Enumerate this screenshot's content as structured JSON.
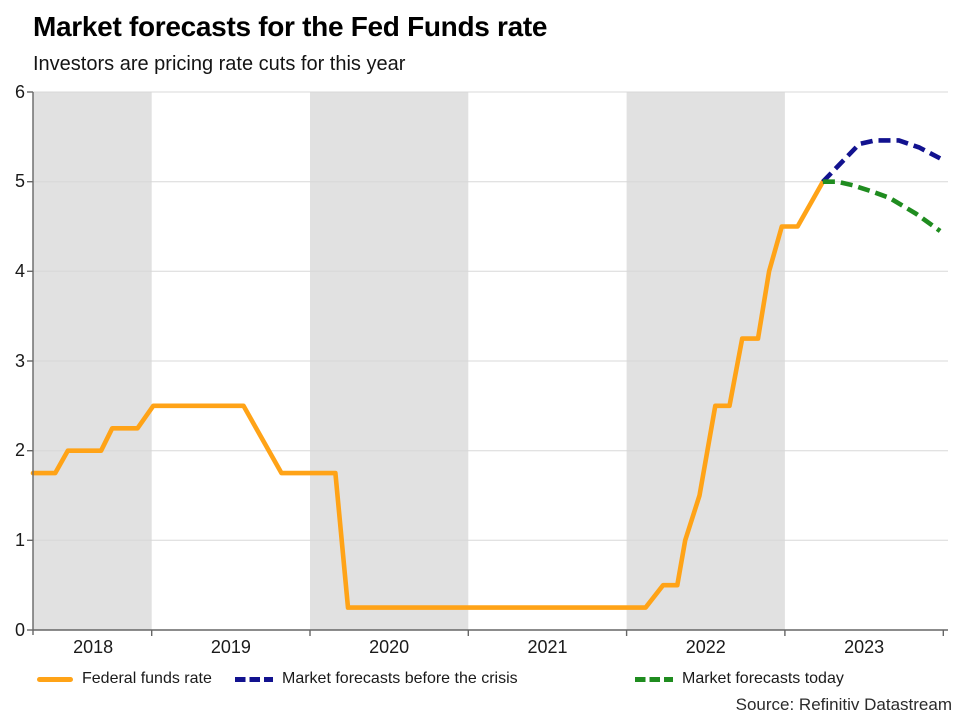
{
  "chart_data": {
    "type": "line",
    "title": "Market forecasts for the Fed Funds rate",
    "subtitle": "Investors are pricing rate cuts for this year",
    "source": "Source: Refinitiv Datastream",
    "xlabel": "",
    "ylabel": "",
    "xlim": [
      2018.25,
      2024.03
    ],
    "ylim": [
      0,
      6
    ],
    "y_ticks": [
      0,
      1,
      2,
      3,
      4,
      5,
      6
    ],
    "x_ticks": [
      2019,
      2020,
      2021,
      2022,
      2023,
      2024
    ],
    "x_tick_labels": [
      {
        "label": "2018",
        "x": 2018.63
      },
      {
        "label": "2019",
        "x": 2019.5
      },
      {
        "label": "2020",
        "x": 2020.5
      },
      {
        "label": "2021",
        "x": 2021.5
      },
      {
        "label": "2022",
        "x": 2022.5
      },
      {
        "label": "2023",
        "x": 2023.5
      }
    ],
    "shaded_year_bands": [
      [
        2018.25,
        2019
      ],
      [
        2020,
        2021
      ],
      [
        2022,
        2023
      ]
    ],
    "grid": "horizontal-only",
    "legend_position": "bottom",
    "colors": {
      "band": "#E1E1E1",
      "grid": "#D8D8D8",
      "axis": "#666666",
      "tick_text": "#1A1A1A"
    },
    "series": [
      {
        "name": "Federal funds rate",
        "color": "#FFA317",
        "style": "solid",
        "points": [
          [
            2018.25,
            1.75
          ],
          [
            2018.39,
            1.75
          ],
          [
            2018.47,
            2.0
          ],
          [
            2018.68,
            2.0
          ],
          [
            2018.75,
            2.25
          ],
          [
            2018.91,
            2.25
          ],
          [
            2019.01,
            2.5
          ],
          [
            2019.58,
            2.5
          ],
          [
            2019.82,
            1.75
          ],
          [
            2020.16,
            1.75
          ],
          [
            2020.24,
            0.25
          ],
          [
            2022.12,
            0.25
          ],
          [
            2022.23,
            0.5
          ],
          [
            2022.32,
            0.5
          ],
          [
            2022.37,
            1.0
          ],
          [
            2022.46,
            1.5
          ],
          [
            2022.51,
            2.0
          ],
          [
            2022.56,
            2.5
          ],
          [
            2022.65,
            2.5
          ],
          [
            2022.73,
            3.25
          ],
          [
            2022.83,
            3.25
          ],
          [
            2022.9,
            4.0
          ],
          [
            2022.98,
            4.5
          ],
          [
            2023.08,
            4.5
          ],
          [
            2023.24,
            5.0
          ]
        ]
      },
      {
        "name": "Market forecasts before the crisis",
        "color": "#12128F",
        "style": "dashed",
        "points": [
          [
            2023.24,
            5.0
          ],
          [
            2023.47,
            5.42
          ],
          [
            2023.57,
            5.46
          ],
          [
            2023.72,
            5.46
          ],
          [
            2023.85,
            5.38
          ],
          [
            2023.98,
            5.26
          ]
        ]
      },
      {
        "name": "Market forecasts today",
        "color": "#1F8C1F",
        "style": "dashed",
        "points": [
          [
            2023.24,
            5.0
          ],
          [
            2023.33,
            5.0
          ],
          [
            2023.43,
            4.96
          ],
          [
            2023.55,
            4.89
          ],
          [
            2023.66,
            4.82
          ],
          [
            2023.83,
            4.64
          ],
          [
            2023.98,
            4.45
          ]
        ]
      }
    ]
  }
}
